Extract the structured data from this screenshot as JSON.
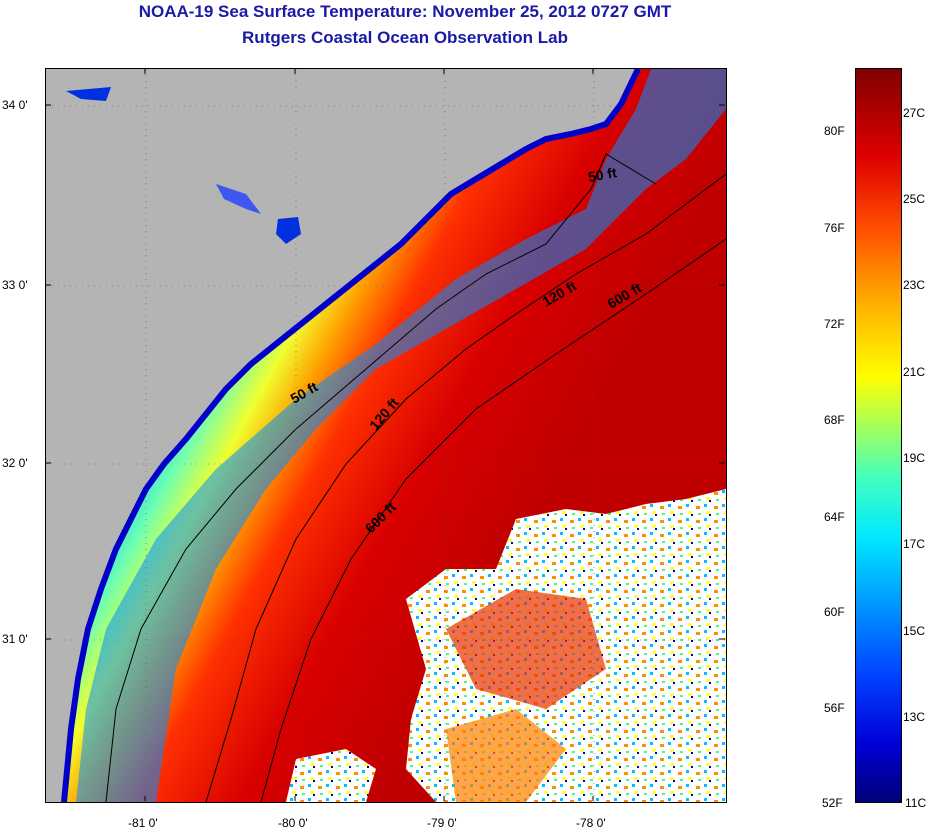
{
  "title_line1": "NOAA-19 Sea Surface Temperature:  November 25, 2012 0727 GMT",
  "title_line2": "Rutgers Coastal Ocean Observation Lab",
  "map": {
    "lat_labels": [
      "34 0'",
      "33 0'",
      "32 0'",
      "31 0'"
    ],
    "lon_labels": [
      "-81 0'",
      "-80 0'",
      "-79 0'",
      "-78 0'"
    ],
    "isobath_labels": [
      "50 ft",
      "120 ft",
      "600 ft",
      "50 ft",
      "120 ft",
      "600 ft"
    ],
    "colors": {
      "land": "#b4b4b4",
      "cloud": "#ffffff",
      "coast": "#0000c8"
    }
  },
  "colorbar": {
    "fahrenheit": [
      "80F",
      "76F",
      "72F",
      "68F",
      "64F",
      "60F",
      "56F",
      "52F"
    ],
    "celsius": [
      "27C",
      "25C",
      "23C",
      "21C",
      "19C",
      "17C",
      "15C",
      "13C",
      "11C"
    ]
  }
}
